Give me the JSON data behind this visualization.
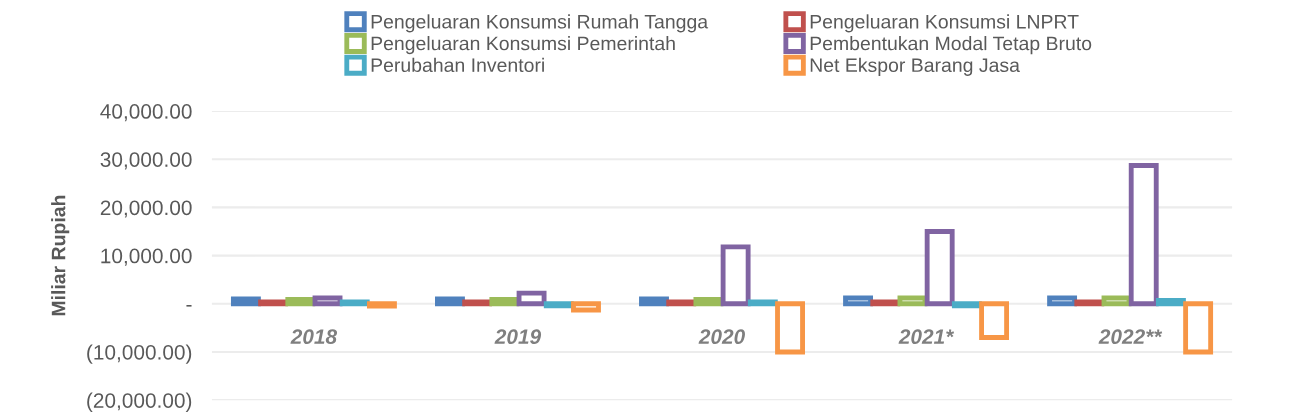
{
  "chart_data": {
    "type": "bar",
    "ylabel": "Miliar Rupiah",
    "categories": [
      "2018",
      "2019",
      "2020",
      "2021*",
      "2022**"
    ],
    "series": [
      {
        "name": "Pengeluaran Konsumsi Rumah Tangga",
        "color": "#4f81bd",
        "values": [
          1000,
          1000,
          1000,
          1200,
          1200
        ]
      },
      {
        "name": "Pengeluaran Konsumsi LNPRT",
        "color": "#c0504d",
        "values": [
          400,
          400,
          400,
          400,
          400
        ]
      },
      {
        "name": "Pengeluaran Konsumsi Pemerintah",
        "color": "#9bbb59",
        "values": [
          900,
          900,
          900,
          1200,
          1200
        ]
      },
      {
        "name": "Pembentukan Modal Tetap Bruto",
        "color": "#8064a2",
        "values": [
          1200,
          2200,
          11800,
          15000,
          28700
        ]
      },
      {
        "name": "Perubahan Inventori",
        "color": "#4bacc6",
        "values": [
          400,
          -400,
          400,
          -400,
          700
        ]
      },
      {
        "name": "Net Ekspor Barang Jasa",
        "color": "#f79646",
        "values": [
          -500,
          -1300,
          -10000,
          -7000,
          -10000
        ]
      }
    ],
    "ylim": [
      -20000,
      40000
    ],
    "yticks": [
      {
        "value": -20000,
        "label": "(20,000.00)"
      },
      {
        "value": -10000,
        "label": "(10,000.00)"
      },
      {
        "value": 0,
        "label": "-"
      },
      {
        "value": 10000,
        "label": "10,000.00"
      },
      {
        "value": 20000,
        "label": "20,000.00"
      },
      {
        "value": 30000,
        "label": "30,000.00"
      },
      {
        "value": 40000,
        "label": "40,000.00"
      }
    ],
    "grid": "y",
    "legend": "top"
  }
}
